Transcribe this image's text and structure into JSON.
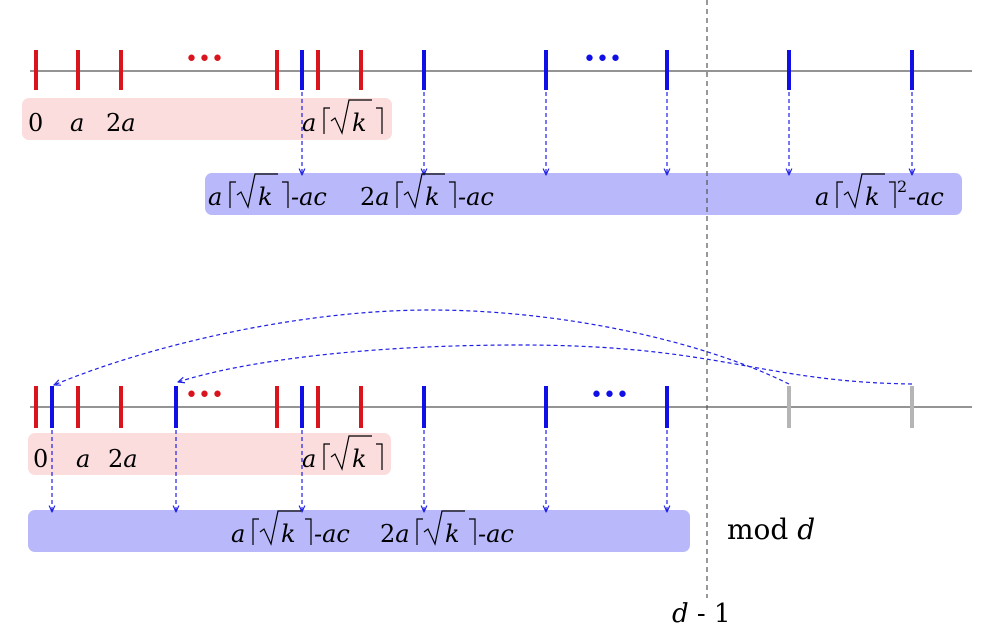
{
  "colors": {
    "red_tick": "#d9141d",
    "blue_tick": "#1010e6",
    "gray_tick": "#b5b5b5",
    "red_box": "#fbdddd",
    "blue_box": "#b8b8fb",
    "axis": "#555555",
    "arrow": "#1e1ee6",
    "threshold": "#555555"
  },
  "labels": {
    "top_zero": "0",
    "top_a": "a",
    "top_2a_coef": "2",
    "top_2a_var": "a",
    "top_ak_a": "a",
    "top_ak_k": "k",
    "blue1_a": "a",
    "blue1_k": "k",
    "blue1_suffix": "-ac",
    "blue2_coef": "2",
    "blue2_a": "a",
    "blue2_k": "k",
    "blue2_suffix": "-ac",
    "blue3_a": "a",
    "blue3_k": "k",
    "blue3_sup": "2",
    "blue3_suffix": "-ac",
    "bottom_zero": "0",
    "bottom_a": "a",
    "bottom_2a_coef": "2",
    "bottom_2a_var": "a",
    "bottom_ak_a": "a",
    "bottom_ak_k": "k",
    "bb1_a": "a",
    "bb1_k": "k",
    "bb1_suffix": "-ac",
    "bb2_coef": "2",
    "bb2_a": "a",
    "bb2_k": "k",
    "bb2_suffix": "-ac",
    "mod_word": "mod",
    "mod_var": "d",
    "threshold_var": "d",
    "threshold_rest": " - 1",
    "ellipsis": "•••"
  }
}
